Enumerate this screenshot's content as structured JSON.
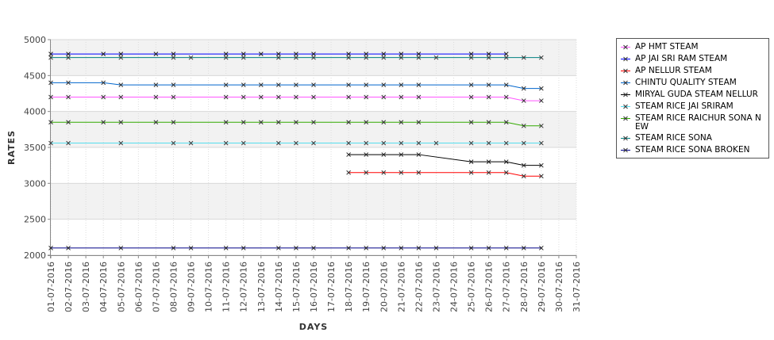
{
  "chart_data": {
    "type": "line",
    "title": "",
    "xlabel": "DAYS",
    "ylabel": "RATES",
    "ylim": [
      2000,
      5000
    ],
    "yticks": [
      2000,
      2500,
      3000,
      3500,
      4000,
      4500,
      5000
    ],
    "x_ticks": [
      "01-07-2016",
      "02-07-2016",
      "03-07-2016",
      "04-07-2016",
      "05-07-2016",
      "06-07-2016",
      "07-07-2016",
      "08-07-2016",
      "09-07-2016",
      "10-07-2016",
      "11-07-2016",
      "12-07-2016",
      "13-07-2016",
      "14-07-2016",
      "15-07-2016",
      "16-07-2016",
      "17-07-2016",
      "18-07-2016",
      "19-07-2016",
      "20-07-2016",
      "21-07-2016",
      "22-07-2016",
      "23-07-2016",
      "24-07-2016",
      "25-07-2016",
      "26-07-2016",
      "27-07-2016",
      "28-07-2016",
      "29-07-2016",
      "30-07-2016",
      "31-07-2016"
    ],
    "grid": true,
    "legend_position": "right",
    "background_bands": [
      "#ffffff",
      "#f2f2f2"
    ],
    "series": [
      {
        "name": "AP HMT STEAM",
        "color": "#ff55ff",
        "x": [
          "01-07-2016",
          "02-07-2016",
          "04-07-2016",
          "05-07-2016",
          "07-07-2016",
          "08-07-2016",
          "11-07-2016",
          "12-07-2016",
          "13-07-2016",
          "14-07-2016",
          "15-07-2016",
          "16-07-2016",
          "18-07-2016",
          "19-07-2016",
          "20-07-2016",
          "21-07-2016",
          "22-07-2016",
          "25-07-2016",
          "26-07-2016",
          "27-07-2016",
          "28-07-2016",
          "29-07-2016"
        ],
        "y": [
          4200,
          4200,
          4200,
          4200,
          4200,
          4200,
          4200,
          4200,
          4200,
          4200,
          4200,
          4200,
          4200,
          4200,
          4200,
          4200,
          4200,
          4200,
          4200,
          4200,
          4150,
          4150
        ]
      },
      {
        "name": "AP JAI SRI RAM STEAM",
        "color": "#0000ff",
        "x": [
          "01-07-2016",
          "02-07-2016",
          "04-07-2016",
          "05-07-2016",
          "07-07-2016",
          "08-07-2016",
          "11-07-2016",
          "12-07-2016",
          "13-07-2016",
          "14-07-2016",
          "15-07-2016",
          "16-07-2016",
          "18-07-2016",
          "19-07-2016",
          "20-07-2016",
          "21-07-2016",
          "22-07-2016",
          "25-07-2016",
          "26-07-2016",
          "27-07-2016"
        ],
        "y": [
          4800,
          4800,
          4800,
          4800,
          4800,
          4800,
          4800,
          4800,
          4800,
          4800,
          4800,
          4800,
          4800,
          4800,
          4800,
          4800,
          4800,
          4800,
          4800,
          4800
        ]
      },
      {
        "name": "AP NELLUR STEAM",
        "color": "#ff0000",
        "x": [
          "18-07-2016",
          "19-07-2016",
          "20-07-2016",
          "21-07-2016",
          "22-07-2016",
          "25-07-2016",
          "26-07-2016",
          "27-07-2016",
          "28-07-2016",
          "29-07-2016"
        ],
        "y": [
          3150,
          3150,
          3150,
          3150,
          3150,
          3150,
          3150,
          3150,
          3100,
          3100
        ]
      },
      {
        "name": "CHINTU QUALITY STEAM",
        "color": "#0066cc",
        "x": [
          "01-07-2016",
          "02-07-2016",
          "04-07-2016",
          "05-07-2016",
          "07-07-2016",
          "08-07-2016",
          "11-07-2016",
          "12-07-2016",
          "13-07-2016",
          "14-07-2016",
          "15-07-2016",
          "16-07-2016",
          "18-07-2016",
          "19-07-2016",
          "20-07-2016",
          "21-07-2016",
          "22-07-2016",
          "25-07-2016",
          "26-07-2016",
          "27-07-2016",
          "28-07-2016",
          "29-07-2016"
        ],
        "y": [
          4400,
          4400,
          4400,
          4370,
          4370,
          4370,
          4370,
          4370,
          4370,
          4370,
          4370,
          4370,
          4370,
          4370,
          4370,
          4370,
          4370,
          4370,
          4370,
          4370,
          4320,
          4320
        ]
      },
      {
        "name": "MIRYAL GUDA STEAM NELLUR",
        "color": "#000000",
        "x": [
          "18-07-2016",
          "19-07-2016",
          "20-07-2016",
          "21-07-2016",
          "22-07-2016",
          "25-07-2016",
          "26-07-2016",
          "27-07-2016",
          "28-07-2016",
          "29-07-2016"
        ],
        "y": [
          3400,
          3400,
          3400,
          3400,
          3400,
          3300,
          3300,
          3300,
          3250,
          3250
        ]
      },
      {
        "name": "STEAM RICE JAI SRIRAM",
        "color": "#55ddee",
        "x": [
          "01-07-2016",
          "02-07-2016",
          "05-07-2016",
          "08-07-2016",
          "09-07-2016",
          "11-07-2016",
          "12-07-2016",
          "14-07-2016",
          "15-07-2016",
          "16-07-2016",
          "18-07-2016",
          "19-07-2016",
          "20-07-2016",
          "21-07-2016",
          "22-07-2016",
          "23-07-2016",
          "25-07-2016",
          "26-07-2016",
          "27-07-2016",
          "28-07-2016",
          "29-07-2016"
        ],
        "y": [
          3560,
          3560,
          3560,
          3560,
          3560,
          3560,
          3560,
          3560,
          3560,
          3560,
          3560,
          3560,
          3560,
          3560,
          3560,
          3560,
          3560,
          3560,
          3560,
          3560,
          3560
        ]
      },
      {
        "name": "STEAM RICE RAICHUR SONA NEW",
        "color": "#33aa00",
        "x": [
          "01-07-2016",
          "02-07-2016",
          "04-07-2016",
          "05-07-2016",
          "07-07-2016",
          "08-07-2016",
          "11-07-2016",
          "12-07-2016",
          "13-07-2016",
          "14-07-2016",
          "15-07-2016",
          "16-07-2016",
          "18-07-2016",
          "19-07-2016",
          "20-07-2016",
          "21-07-2016",
          "22-07-2016",
          "25-07-2016",
          "26-07-2016",
          "27-07-2016",
          "28-07-2016",
          "29-07-2016"
        ],
        "y": [
          3850,
          3850,
          3850,
          3850,
          3850,
          3850,
          3850,
          3850,
          3850,
          3850,
          3850,
          3850,
          3850,
          3850,
          3850,
          3850,
          3850,
          3850,
          3850,
          3850,
          3800,
          3800
        ]
      },
      {
        "name": "STEAM RICE SONA",
        "color": "#008080",
        "x": [
          "01-07-2016",
          "02-07-2016",
          "05-07-2016",
          "08-07-2016",
          "09-07-2016",
          "11-07-2016",
          "12-07-2016",
          "14-07-2016",
          "15-07-2016",
          "16-07-2016",
          "18-07-2016",
          "19-07-2016",
          "20-07-2016",
          "21-07-2016",
          "22-07-2016",
          "23-07-2016",
          "25-07-2016",
          "26-07-2016",
          "27-07-2016",
          "28-07-2016",
          "29-07-2016"
        ],
        "y": [
          4750,
          4750,
          4750,
          4750,
          4750,
          4750,
          4750,
          4750,
          4750,
          4750,
          4750,
          4750,
          4750,
          4750,
          4750,
          4750,
          4750,
          4750,
          4750,
          4750,
          4750
        ]
      },
      {
        "name": "STEAM RICE SONA BROKEN",
        "color": "#000088",
        "x": [
          "01-07-2016",
          "02-07-2016",
          "05-07-2016",
          "08-07-2016",
          "09-07-2016",
          "11-07-2016",
          "12-07-2016",
          "14-07-2016",
          "15-07-2016",
          "16-07-2016",
          "18-07-2016",
          "19-07-2016",
          "20-07-2016",
          "21-07-2016",
          "22-07-2016",
          "23-07-2016",
          "25-07-2016",
          "26-07-2016",
          "27-07-2016",
          "28-07-2016",
          "29-07-2016"
        ],
        "y": [
          2100,
          2100,
          2100,
          2100,
          2100,
          2100,
          2100,
          2100,
          2100,
          2100,
          2100,
          2100,
          2100,
          2100,
          2100,
          2100,
          2100,
          2100,
          2100,
          2100,
          2100
        ]
      }
    ]
  }
}
